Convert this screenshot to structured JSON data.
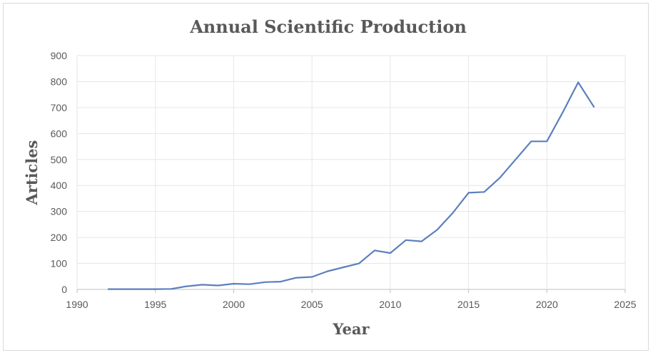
{
  "chart_data": {
    "type": "line",
    "title": "Annual Scientific Production",
    "xlabel": "Year",
    "ylabel": "Articles",
    "xlim": [
      1990,
      2025
    ],
    "ylim": [
      0,
      900
    ],
    "x_ticks": [
      "1990",
      "1995",
      "2000",
      "2005",
      "2010",
      "2015",
      "2020",
      "2025"
    ],
    "y_ticks": [
      "0",
      "100",
      "200",
      "300",
      "400",
      "500",
      "600",
      "700",
      "800",
      "900"
    ],
    "grid": true,
    "legend": "none",
    "line_color": "#5b7fbf",
    "series": [
      {
        "x": [
          1992,
          1993,
          1994,
          1995,
          1996,
          1997,
          1998,
          1999,
          2000,
          2001,
          2002,
          2003,
          2004,
          2005,
          2006,
          2007,
          2008,
          2009,
          2010,
          2011,
          2012,
          2013,
          2014,
          2015,
          2016,
          2017,
          2018,
          2019,
          2020,
          2021,
          2022,
          2023
        ],
        "values": [
          1,
          1,
          1,
          1,
          2,
          12,
          18,
          15,
          22,
          20,
          28,
          30,
          45,
          48,
          70,
          85,
          100,
          150,
          140,
          190,
          185,
          230,
          295,
          372,
          375,
          430,
          500,
          570,
          570,
          680,
          797,
          703
        ]
      }
    ]
  }
}
